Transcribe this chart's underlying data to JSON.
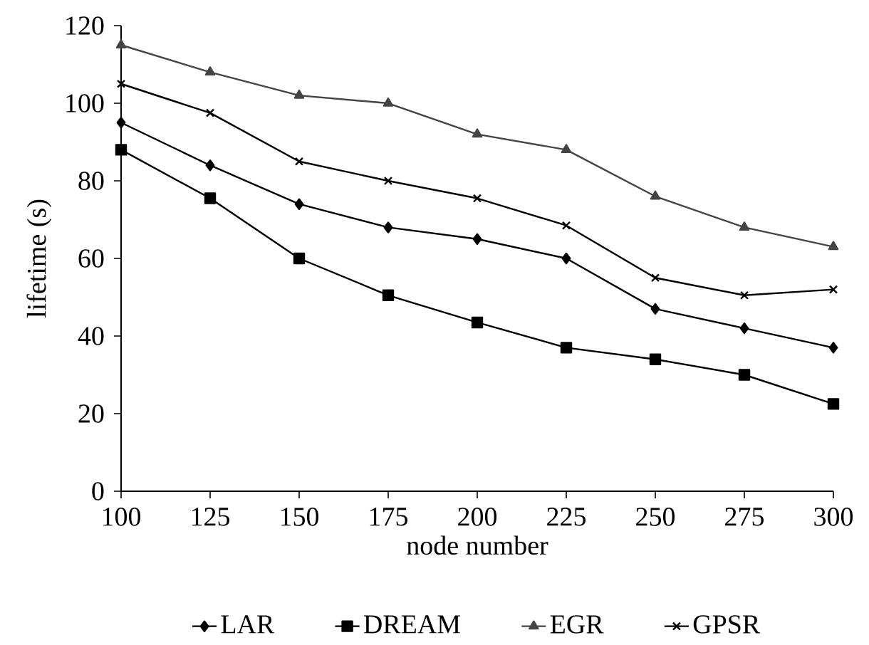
{
  "chart_data": {
    "type": "line",
    "xlabel": "node number",
    "ylabel": "lifetime (s)",
    "x": [
      100,
      125,
      150,
      175,
      200,
      225,
      250,
      275,
      300
    ],
    "xlim": [
      100,
      300
    ],
    "xticks": [
      100,
      125,
      150,
      175,
      200,
      225,
      250,
      275,
      300
    ],
    "ylim": [
      0,
      120
    ],
    "yticks": [
      0,
      20,
      40,
      60,
      80,
      100,
      120
    ],
    "legend": "bottom",
    "line_style": "solid",
    "series": [
      {
        "name": "LAR",
        "color": "#000000",
        "marker": "diamond",
        "values": [
          95,
          84,
          74,
          68,
          65,
          60,
          47,
          42,
          37
        ]
      },
      {
        "name": "DREAM",
        "color": "#000000",
        "marker": "square",
        "values": [
          88,
          75.5,
          60,
          50.5,
          43.5,
          37,
          34,
          30,
          22.5
        ]
      },
      {
        "name": "EGR",
        "color": "#444444",
        "marker": "triangle",
        "values": [
          115,
          108,
          102,
          100,
          92,
          88,
          76,
          68,
          63
        ]
      },
      {
        "name": "GPSR",
        "color": "#000000",
        "marker": "cross",
        "values": [
          105,
          97.5,
          85,
          80,
          75.5,
          68.5,
          55,
          50.5,
          52
        ]
      }
    ]
  }
}
